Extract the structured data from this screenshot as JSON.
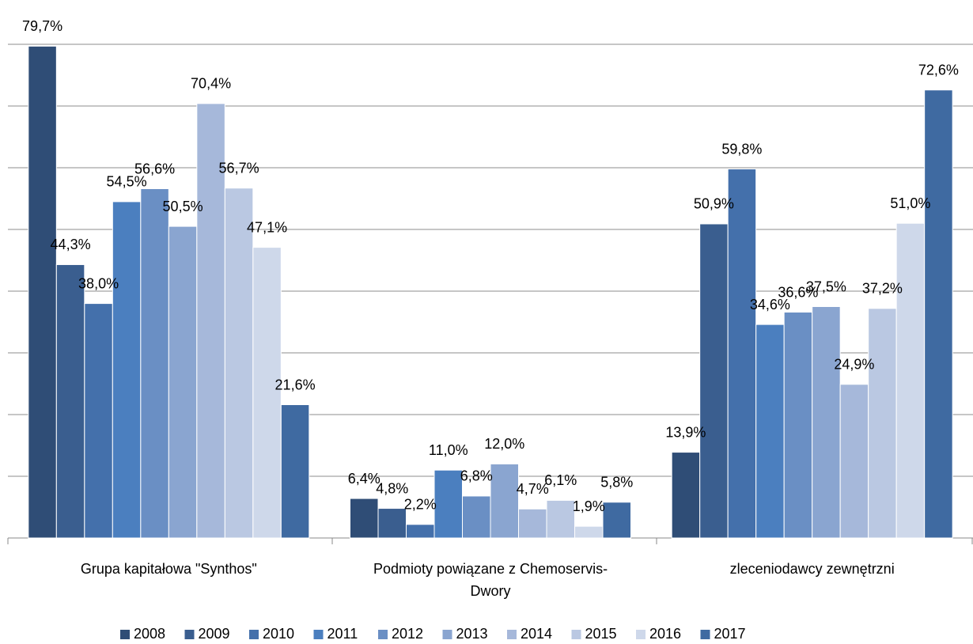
{
  "chart_data": {
    "type": "bar",
    "categories": [
      "Grupa kapitałowa \"Synthos\"",
      "Podmioty powiązane z Chemoservis-Dwory",
      "zleceniodawcy zewnętrzni"
    ],
    "ylim": [
      0,
      80
    ],
    "yticks": [
      0,
      10,
      20,
      30,
      40,
      50,
      60,
      70,
      80
    ],
    "grid": true,
    "legend": "bottom",
    "series": [
      {
        "name": "2008",
        "color": "#2f4d76",
        "values": [
          79.7,
          6.4,
          13.9
        ],
        "value_labels": [
          "79,7%",
          "6,4%",
          "13,9%"
        ]
      },
      {
        "name": "2009",
        "color": "#3a5e8f",
        "values": [
          44.3,
          4.8,
          50.9
        ],
        "value_labels": [
          "44,3%",
          "4,8%",
          "50,9%"
        ]
      },
      {
        "name": "2010",
        "color": "#4470ab",
        "values": [
          38.0,
          2.2,
          59.8
        ],
        "value_labels": [
          "38,0%",
          "2,2%",
          "59,8%"
        ]
      },
      {
        "name": "2011",
        "color": "#4b7fbf",
        "values": [
          54.5,
          11.0,
          34.6
        ],
        "value_labels": [
          "54,5%",
          "11,0%",
          "34,6%"
        ]
      },
      {
        "name": "2012",
        "color": "#6a8fc4",
        "values": [
          56.6,
          6.8,
          36.6
        ],
        "value_labels": [
          "56,6%",
          "6,8%",
          "36,6%"
        ]
      },
      {
        "name": "2013",
        "color": "#8aa5d0",
        "values": [
          50.5,
          12.0,
          37.5
        ],
        "value_labels": [
          "50,5%",
          "12,0%",
          "37,5%"
        ]
      },
      {
        "name": "2014",
        "color": "#a6b8da",
        "values": [
          70.4,
          4.7,
          24.9
        ],
        "value_labels": [
          "70,4%",
          "4,7%",
          "24,9%"
        ]
      },
      {
        "name": "2015",
        "color": "#bac8e2",
        "values": [
          56.7,
          6.1,
          37.2
        ],
        "value_labels": [
          "56,7%",
          "6,1%",
          "37,2%"
        ]
      },
      {
        "name": "2016",
        "color": "#ced8ea",
        "values": [
          47.1,
          1.9,
          51.0
        ],
        "value_labels": [
          "47,1%",
          "1,9%",
          "51,0%"
        ]
      },
      {
        "name": "2017",
        "color": "#3f6aa1",
        "values": [
          21.6,
          5.8,
          72.6
        ],
        "value_labels": [
          "21,6%",
          "5,8%",
          "72,6%"
        ]
      }
    ]
  }
}
